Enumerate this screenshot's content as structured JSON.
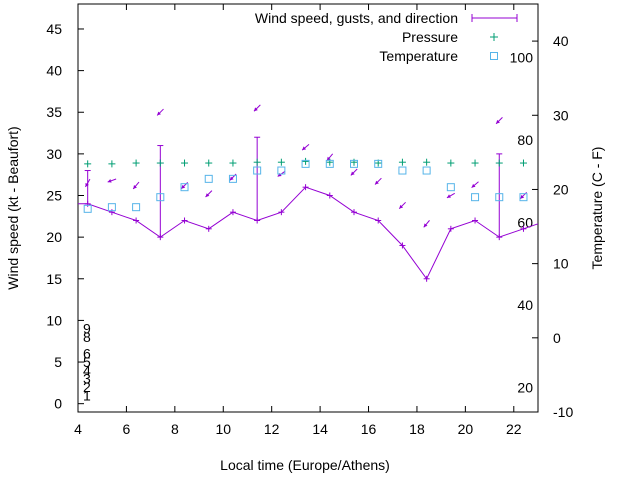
{
  "chart_data": {
    "type": "line",
    "xlabel": "Local time (Europe/Athens)",
    "ylabel": "Wind speed (kt - Beaufort)",
    "y2label": "Temperature (C - F)",
    "xlim": [
      4,
      23
    ],
    "ylim": [
      -1,
      48
    ],
    "y2lim": [
      -10,
      45
    ],
    "x_ticks": [
      4,
      6,
      8,
      10,
      12,
      14,
      16,
      18,
      20,
      22
    ],
    "y_ticks": [
      0,
      5,
      10,
      15,
      20,
      25,
      30,
      35,
      40,
      45
    ],
    "y2_ticks": [
      -10,
      0,
      10,
      20,
      30,
      40
    ],
    "beaufort_labels": [
      {
        "value": 1,
        "label": "1"
      },
      {
        "value": 2,
        "label": "2"
      },
      {
        "value": 3,
        "label": "3"
      },
      {
        "value": 4,
        "label": "4"
      },
      {
        "value": 5,
        "label": "5"
      },
      {
        "value": 6,
        "label": "6"
      },
      {
        "value": 8,
        "label": "8"
      },
      {
        "value": 9,
        "label": "9"
      }
    ],
    "fahrenheit_labels": [
      {
        "value": 20,
        "label": "20"
      },
      {
        "value": 40,
        "label": "40"
      },
      {
        "value": 60,
        "label": "60"
      },
      {
        "value": 80,
        "label": "80"
      },
      {
        "value": 100,
        "label": "100"
      }
    ],
    "legend_position": "top-right",
    "series": [
      {
        "name": "Wind speed, gusts, and direction",
        "color": "#9400d3",
        "x": [
          4.0,
          4.4,
          5.4,
          6.4,
          7.4,
          8.4,
          9.4,
          10.4,
          11.4,
          12.4,
          13.4,
          14.4,
          15.4,
          16.4,
          17.4,
          18.4,
          19.4,
          20.4,
          21.4,
          22.4,
          23.0
        ],
        "values": [
          24,
          24,
          23,
          22,
          20,
          22,
          21,
          23,
          22,
          23,
          26,
          25,
          23,
          22,
          19,
          15,
          21,
          22,
          20,
          21,
          21.6
        ],
        "gusts": [
          null,
          28,
          null,
          null,
          31,
          null,
          null,
          null,
          32,
          null,
          null,
          null,
          null,
          null,
          null,
          null,
          null,
          null,
          30,
          null,
          null
        ],
        "direction_deg": [
          null,
          150,
          110,
          140,
          135,
          135,
          135,
          135,
          135,
          125,
          130,
          140,
          135,
          135,
          135,
          140,
          120,
          130,
          135,
          135,
          null
        ],
        "arrow_y": [
          null,
          26.5,
          26.8,
          26.2,
          35,
          26.2,
          25.2,
          27.2,
          35.5,
          27.6,
          30.8,
          29.6,
          27.8,
          26.7,
          23.8,
          21.6,
          25,
          26.3,
          34,
          25,
          null
        ]
      },
      {
        "name": "Pressure",
        "color": "#009e73",
        "marker": "+",
        "x": [
          4.4,
          5.4,
          6.4,
          7.4,
          8.4,
          9.4,
          10.4,
          11.4,
          12.4,
          13.4,
          14.4,
          15.4,
          16.4,
          17.4,
          18.4,
          19.4,
          20.4,
          21.4,
          22.4
        ],
        "values": [
          28.8,
          28.8,
          28.9,
          28.9,
          28.9,
          28.9,
          28.9,
          29,
          29,
          29.1,
          29,
          29,
          28.9,
          29,
          29,
          28.9,
          28.9,
          28.9,
          28.9
        ]
      },
      {
        "name": "Temperature",
        "color": "#56b4e9",
        "marker": "square",
        "x": [
          4.4,
          5.4,
          6.4,
          7.4,
          8.4,
          9.4,
          10.4,
          11.4,
          12.4,
          13.4,
          14.4,
          15.4,
          16.4,
          17.4,
          18.4,
          19.4,
          20.4,
          21.4,
          22.4
        ],
        "values": [
          23.4,
          23.6,
          23.6,
          24.8,
          26,
          27,
          27,
          28,
          28,
          28.8,
          28.8,
          28.8,
          28.8,
          28,
          28,
          26,
          24.8,
          24.8,
          24.8
        ]
      }
    ]
  }
}
